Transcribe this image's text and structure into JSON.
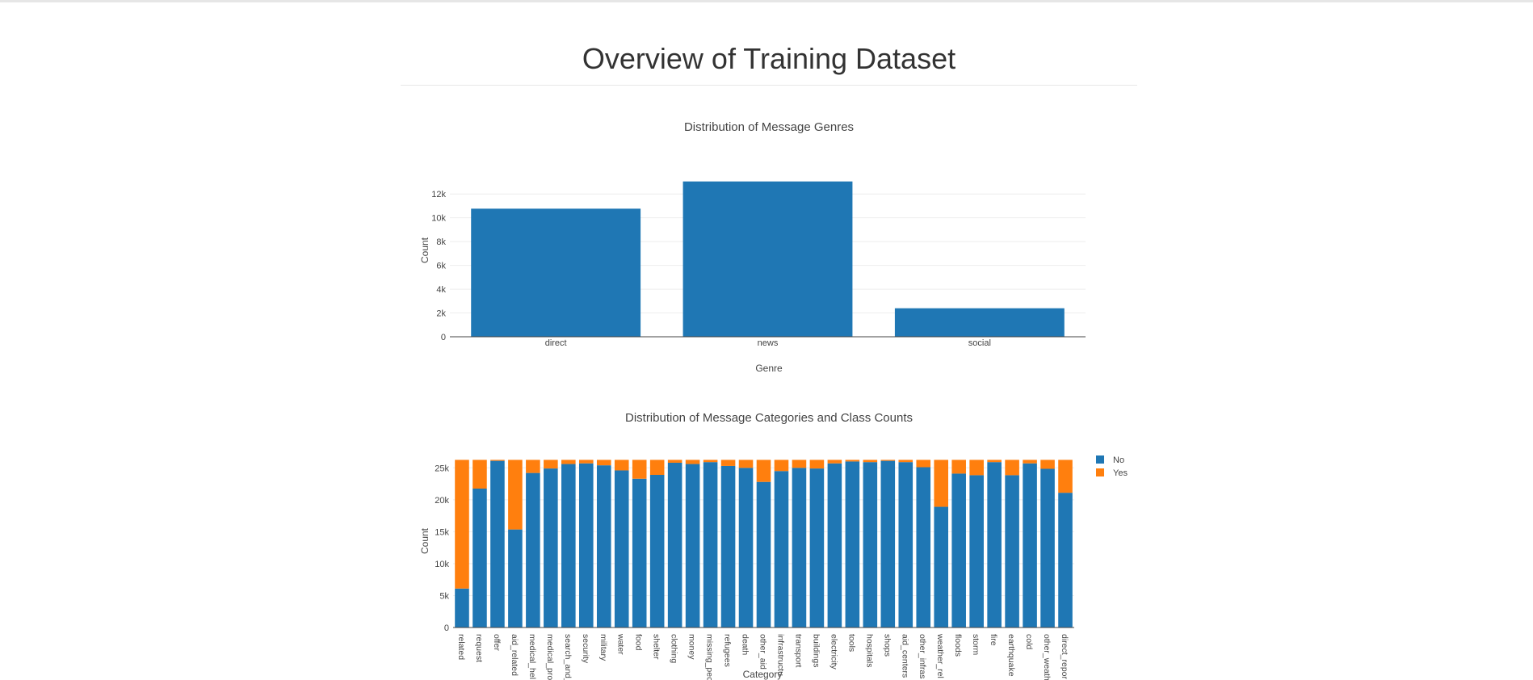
{
  "page": {
    "title": "Overview of Training Dataset"
  },
  "colors": {
    "no": "#1f77b4",
    "yes": "#ff7f0e",
    "grid": "#eeeeee",
    "axis": "#444444",
    "text": "#444444"
  },
  "chart_data": [
    {
      "type": "bar",
      "title": "Distribution of Message Genres",
      "xlabel": "Genre",
      "ylabel": "Count",
      "categories": [
        "direct",
        "news",
        "social"
      ],
      "values": [
        10766,
        13054,
        2396
      ],
      "ylim": [
        0,
        13100
      ],
      "yticks": [
        0,
        2000,
        4000,
        6000,
        8000,
        10000,
        12000
      ],
      "ytick_labels": [
        "0",
        "2k",
        "4k",
        "6k",
        "8k",
        "10k",
        "12k"
      ],
      "grid": true,
      "legend": false
    },
    {
      "type": "bar",
      "stacked": true,
      "title": "Distribution of Message Categories and Class Counts",
      "xlabel": "Category",
      "ylabel": "Count",
      "legend_position": "top-right",
      "categories": [
        "related",
        "request",
        "offer",
        "aid_related",
        "medical_help",
        "medical_products",
        "search_and_rescue",
        "security",
        "military",
        "water",
        "food",
        "shelter",
        "clothing",
        "money",
        "missing_people",
        "refugees",
        "death",
        "other_aid",
        "infrastructure_related",
        "transport",
        "buildings",
        "electricity",
        "tools",
        "hospitals",
        "shops",
        "aid_centers",
        "other_infrastructure",
        "weather_related",
        "floods",
        "storm",
        "fire",
        "earthquake",
        "cold",
        "other_weather",
        "direct_report"
      ],
      "series": [
        {
          "name": "No",
          "values": [
            6100,
            21750,
            26100,
            15350,
            24200,
            24900,
            25600,
            25700,
            25400,
            24600,
            23300,
            23900,
            25800,
            25600,
            25900,
            25300,
            25000,
            22800,
            24500,
            25000,
            24900,
            25700,
            26000,
            25900,
            26100,
            25900,
            25100,
            18900,
            24100,
            23850,
            25900,
            23850,
            25700,
            24850,
            21100
          ]
        },
        {
          "name": "Yes",
          "values": [
            20150,
            4500,
            150,
            10900,
            2050,
            1350,
            650,
            550,
            850,
            1650,
            2950,
            2350,
            450,
            650,
            350,
            950,
            1250,
            3450,
            1750,
            1250,
            1350,
            550,
            250,
            350,
            150,
            350,
            1150,
            7350,
            2150,
            2400,
            350,
            2400,
            550,
            1400,
            5150
          ]
        }
      ],
      "ylim": [
        0,
        28200
      ],
      "yticks": [
        0,
        5000,
        10000,
        15000,
        20000,
        25000
      ],
      "ytick_labels": [
        "0",
        "5k",
        "10k",
        "15k",
        "20k",
        "25k"
      ],
      "xtick_labels": [
        "related",
        "request",
        "offer",
        "aid_related",
        "medical_hel",
        "medical_pro",
        "search_and_",
        "security",
        "military",
        "water",
        "food",
        "shelter",
        "clothing",
        "money",
        "missing_pec",
        "refugees",
        "death",
        "other_aid",
        "infrastructu",
        "transport",
        "buildings",
        "electricity",
        "tools",
        "hospitals",
        "shops",
        "aid_centers",
        "other_infras",
        "weather_rel",
        "floods",
        "storm",
        "fire",
        "earthquake",
        "cold",
        "other_weath",
        "direct_repor"
      ],
      "grid": true
    }
  ]
}
